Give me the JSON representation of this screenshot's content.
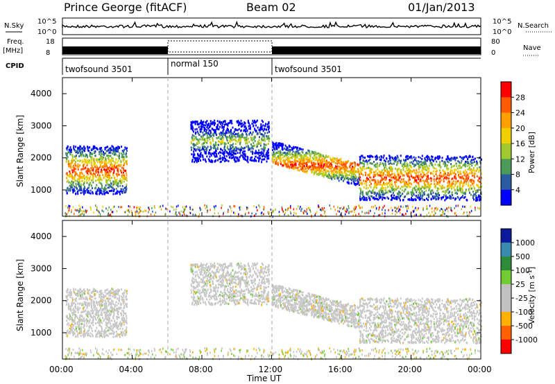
{
  "header": {
    "station": "Prince George (fitACF)",
    "beam": "Beam 02",
    "date": "01/Jan/2013"
  },
  "top_panels": {
    "nsky_label": "N.Sky",
    "nsearch_label": "N.Search",
    "noise_ticks": [
      "10^5",
      "10^0"
    ],
    "freq_label_1": "Freq.",
    "freq_label_2": "[MHz]",
    "freq_ticks": [
      "18",
      "8"
    ],
    "nave_label": "Nave",
    "nave_ticks": [
      "80",
      "0"
    ],
    "cpid_label": "CPID"
  },
  "cpid_segments": [
    {
      "label": "twofsound 3501",
      "start": "00:00",
      "end": "06:00"
    },
    {
      "label": "normal 150",
      "start": "06:00",
      "end": "12:00"
    },
    {
      "label": "twofsound 3501",
      "start": "12:00",
      "end": "24:00"
    }
  ],
  "axes": {
    "ylabel": "Slant Range [km]",
    "xlabel": "Time UT",
    "xticks": [
      "00:00",
      "04:00",
      "08:00",
      "12:00",
      "16:00",
      "20:00",
      "00:00"
    ],
    "yticks": [
      "1000",
      "2000",
      "3000",
      "4000"
    ]
  },
  "colorbars": {
    "power": {
      "label": "Power [dB]",
      "ticks": [
        "28",
        "24",
        "20",
        "16",
        "12",
        "8",
        "4"
      ],
      "colors": [
        "#ff0000",
        "#ff5a00",
        "#ffa000",
        "#f0d000",
        "#a0c830",
        "#4c9a5a",
        "#2a5aa0",
        "#0000ff"
      ]
    },
    "velocity": {
      "label": "Velocity [m s",
      "label_sup": "-1",
      "label_end": "]",
      "ticks": [
        "1000",
        "500",
        "100",
        "25",
        "-25",
        "-100",
        "-500",
        "-1000"
      ],
      "colors": [
        "#0a1a9a",
        "#3a8ab0",
        "#2e8b3a",
        "#70cc30",
        "#c0c0c0",
        "#c0c0c0",
        "#ffb000",
        "#ff6000",
        "#ff0000"
      ]
    }
  },
  "chart_data": [
    {
      "type": "heatmap",
      "title": "Power",
      "xlabel": "Time UT",
      "ylabel": "Slant Range [km]",
      "xlim": [
        "00:00",
        "24:00"
      ],
      "ylim": [
        180,
        4500
      ],
      "colorbar_label": "Power [dB]",
      "clim": [
        0,
        30
      ],
      "echo_regions": [
        {
          "t_start": "00:10",
          "t_end": "03:40",
          "range_start_km": 900,
          "range_end_km": 2400,
          "peak_power_db": 28
        },
        {
          "t_start": "07:20",
          "t_end": "11:50",
          "range_start_km": 1900,
          "range_end_km": 3200,
          "peak_power_db": 16
        },
        {
          "t_start": "12:00",
          "t_end": "17:00",
          "range_start_km": 1200,
          "range_end_km": 2400,
          "peak_power_db": 24
        },
        {
          "t_start": "17:00",
          "t_end": "24:00",
          "range_start_km": 700,
          "range_end_km": 2100,
          "peak_power_db": 28
        }
      ]
    },
    {
      "type": "heatmap",
      "title": "Velocity",
      "xlabel": "Time UT",
      "ylabel": "Slant Range [km]",
      "xlim": [
        "00:00",
        "24:00"
      ],
      "ylim": [
        180,
        4500
      ],
      "colorbar_label": "Velocity [m s-1]",
      "clim": [
        -1000,
        1000
      ],
      "dominant_value_ms": 0
    }
  ]
}
